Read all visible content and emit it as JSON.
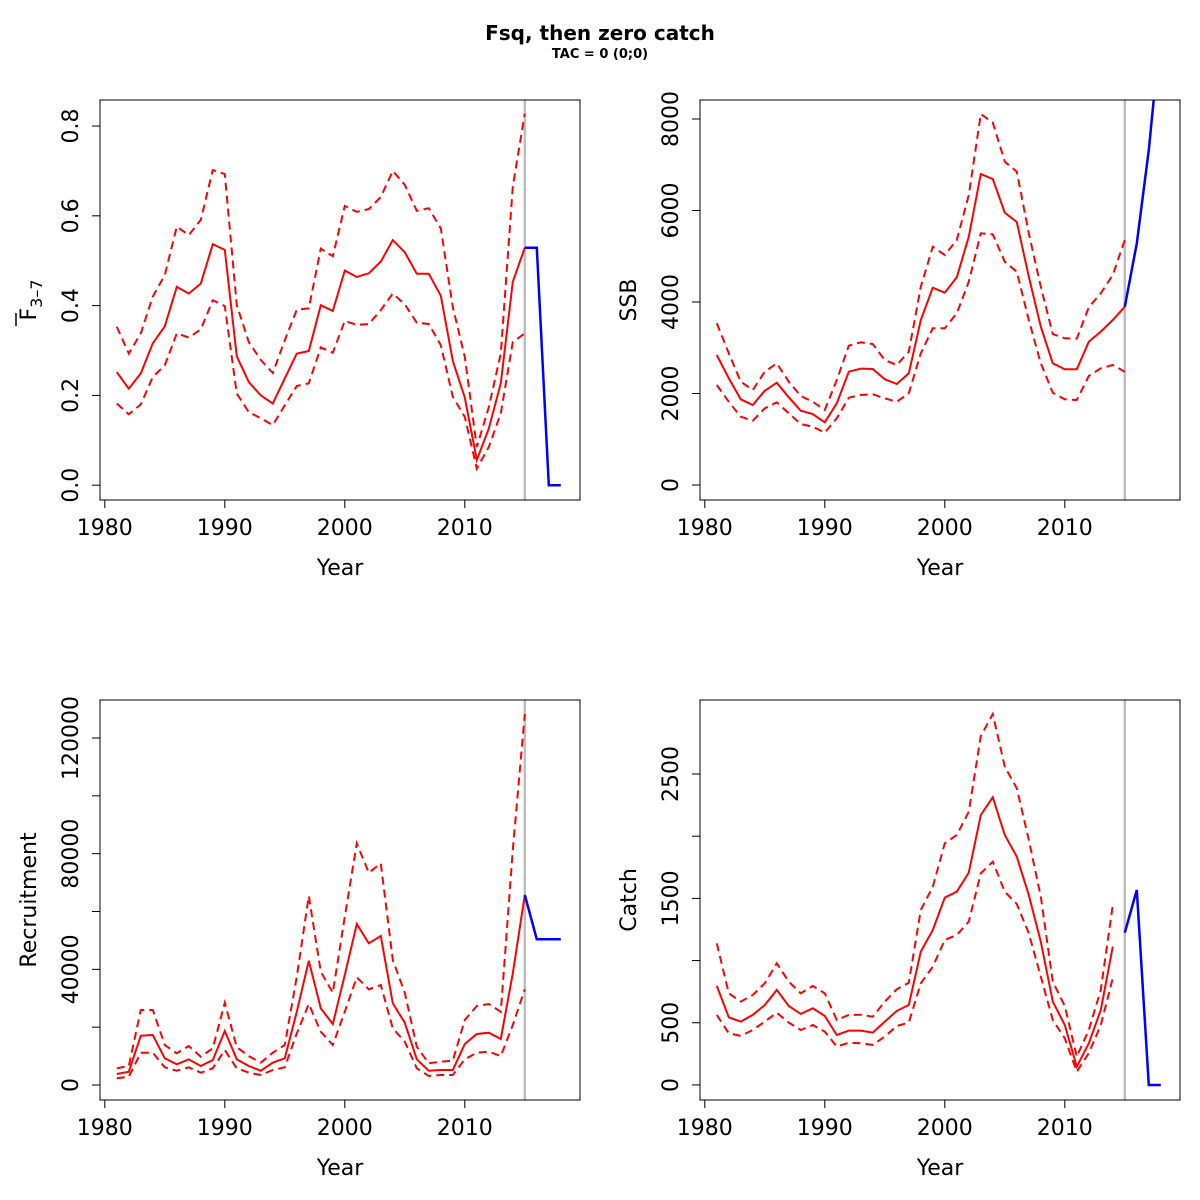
{
  "title": "Fsq, then zero catch",
  "subtitle": "TAC = 0 (0;0)",
  "colors": {
    "estimate": "#ff0000",
    "projection": "#0000ff",
    "divider": "#bebebe"
  },
  "chart_data": [
    {
      "type": "line",
      "id": "f",
      "xlabel": "Year",
      "ylabel": "F",
      "ylabel_sub": "3–7",
      "ylabel_overbar": true,
      "xlim": [
        1979.6,
        2019.6
      ],
      "ylim": [
        -0.033,
        0.858
      ],
      "xticks": [
        1980,
        1990,
        2000,
        2010
      ],
      "yticks": [
        0.0,
        0.2,
        0.4,
        0.6,
        0.8
      ],
      "ytick_labels": [
        "0.0",
        "0.2",
        "0.4",
        "0.6",
        "0.8"
      ],
      "divider_year": 2015,
      "years": [
        1981,
        1982,
        1983,
        1984,
        1985,
        1986,
        1987,
        1988,
        1989,
        1990,
        1991,
        1992,
        1993,
        1994,
        1995,
        1996,
        1997,
        1998,
        1999,
        2000,
        2001,
        2002,
        2003,
        2004,
        2005,
        2006,
        2007,
        2008,
        2009,
        2010,
        2011,
        2012,
        2013,
        2014,
        2015
      ],
      "estimate": [
        0.252,
        0.215,
        0.249,
        0.316,
        0.354,
        0.442,
        0.427,
        0.449,
        0.537,
        0.524,
        0.287,
        0.23,
        0.2,
        0.182,
        0.238,
        0.293,
        0.299,
        0.401,
        0.388,
        0.478,
        0.464,
        0.472,
        0.498,
        0.546,
        0.519,
        0.471,
        0.471,
        0.422,
        0.277,
        0.195,
        0.056,
        0.126,
        0.227,
        0.453,
        0.529
      ],
      "upper": [
        0.353,
        0.293,
        0.338,
        0.42,
        0.468,
        0.576,
        0.557,
        0.591,
        0.702,
        0.693,
        0.401,
        0.319,
        0.279,
        0.25,
        0.323,
        0.391,
        0.394,
        0.527,
        0.51,
        0.622,
        0.609,
        0.615,
        0.642,
        0.7,
        0.669,
        0.611,
        0.617,
        0.572,
        0.397,
        0.286,
        0.085,
        0.174,
        0.293,
        0.665,
        0.828
      ],
      "lower": [
        0.182,
        0.158,
        0.18,
        0.241,
        0.267,
        0.338,
        0.329,
        0.347,
        0.412,
        0.399,
        0.204,
        0.163,
        0.149,
        0.134,
        0.178,
        0.221,
        0.227,
        0.307,
        0.295,
        0.366,
        0.357,
        0.359,
        0.39,
        0.427,
        0.403,
        0.362,
        0.359,
        0.312,
        0.197,
        0.152,
        0.037,
        0.085,
        0.16,
        0.319,
        0.338
      ],
      "projection_years": [
        2015,
        2016,
        2017,
        2018
      ],
      "projection": [
        0.529,
        0.529,
        0.0,
        0.0
      ]
    },
    {
      "type": "line",
      "id": "ssb",
      "xlabel": "Year",
      "ylabel": "SSB",
      "xlim": [
        1979.6,
        2019.6
      ],
      "ylim": [
        -328,
        8415
      ],
      "xticks": [
        1980,
        1990,
        2000,
        2010
      ],
      "yticks": [
        0,
        2000,
        4000,
        6000,
        8000
      ],
      "ytick_labels": [
        "0",
        "2000",
        "4000",
        "6000",
        "8000"
      ],
      "divider_year": 2015,
      "years": [
        1981,
        1982,
        1983,
        1984,
        1985,
        1986,
        1987,
        1988,
        1989,
        1990,
        1991,
        1992,
        1993,
        1994,
        1995,
        1996,
        1997,
        1998,
        1999,
        2000,
        2001,
        2002,
        2003,
        2004,
        2005,
        2006,
        2007,
        2008,
        2009,
        2010,
        2011,
        2012,
        2013,
        2014,
        2015
      ],
      "estimate": [
        2841,
        2332,
        1873,
        1749,
        2062,
        2236,
        1916,
        1624,
        1552,
        1370,
        1785,
        2477,
        2543,
        2536,
        2310,
        2208,
        2441,
        3607,
        4313,
        4204,
        4539,
        5428,
        6798,
        6689,
        5953,
        5749,
        4554,
        3461,
        2659,
        2528,
        2528,
        3133,
        3352,
        3607,
        3898
      ],
      "upper": [
        3534,
        2879,
        2258,
        2077,
        2477,
        2659,
        2258,
        1945,
        1821,
        1639,
        2295,
        3045,
        3119,
        3082,
        2732,
        2623,
        2914,
        4335,
        5209,
        5027,
        5355,
        6339,
        8109,
        7920,
        7067,
        6849,
        5501,
        4335,
        3301,
        3206,
        3200,
        3884,
        4190,
        4590,
        5355
      ],
      "lower": [
        2186,
        1821,
        1493,
        1406,
        1676,
        1807,
        1567,
        1333,
        1275,
        1144,
        1457,
        1909,
        1967,
        1982,
        1895,
        1821,
        2004,
        2879,
        3424,
        3424,
        3752,
        4444,
        5501,
        5479,
        4881,
        4663,
        3607,
        2659,
        2018,
        1873,
        1858,
        2382,
        2550,
        2623,
        2477
      ],
      "projection_years": [
        2015,
        2016,
        2017,
        2018
      ],
      "projection": [
        3898,
        5282,
        7322,
        10000
      ]
    },
    {
      "type": "line",
      "id": "recruitment",
      "xlabel": "Year",
      "ylabel": "Recruitment",
      "xlim": [
        1979.6,
        2019.6
      ],
      "ylim": [
        -5187,
        133140
      ],
      "xticks": [
        1980,
        1990,
        2000,
        2010
      ],
      "yticks": [
        0,
        20000,
        40000,
        60000,
        80000,
        100000,
        120000
      ],
      "ytick_labels": [
        "0",
        "",
        "40000",
        "",
        "80000",
        "",
        "120000"
      ],
      "divider_year": 2015,
      "years": [
        1981,
        1982,
        1983,
        1984,
        1985,
        1986,
        1987,
        1988,
        1989,
        1990,
        1991,
        1992,
        1993,
        1994,
        1995,
        1996,
        1997,
        1998,
        1999,
        2000,
        2001,
        2002,
        2003,
        2004,
        2005,
        2006,
        2007,
        2008,
        2009,
        2010,
        2011,
        2012,
        2013,
        2014,
        2015
      ],
      "estimate": [
        3800,
        4600,
        17050,
        17300,
        9220,
        7150,
        8880,
        6570,
        8650,
        18670,
        8880,
        6570,
        4960,
        7720,
        9220,
        25350,
        43000,
        26520,
        21100,
        38040,
        55680,
        49000,
        51530,
        28250,
        21550,
        8880,
        4960,
        5190,
        5190,
        14180,
        17640,
        18090,
        15910,
        38620,
        65710
      ],
      "upper": [
        5760,
        6570,
        25940,
        25940,
        13830,
        10950,
        13490,
        9800,
        12680,
        28470,
        13030,
        10030,
        7720,
        11180,
        13830,
        37460,
        65360,
        39190,
        31920,
        58210,
        83590,
        73420,
        76650,
        43230,
        31920,
        13260,
        7500,
        8070,
        8400,
        22480,
        27320,
        28010,
        25350,
        81270,
        128300
      ],
      "lower": [
        2300,
        2880,
        11180,
        11180,
        6110,
        4960,
        6110,
        4270,
        5760,
        12100,
        5760,
        4270,
        3460,
        5190,
        6110,
        17870,
        28010,
        18440,
        13830,
        25350,
        37240,
        33090,
        34580,
        19600,
        14980,
        5760,
        3110,
        3460,
        3460,
        8880,
        11180,
        11530,
        10030,
        20750,
        33090
      ],
      "projection_years": [
        2015,
        2016,
        2017,
        2018
      ],
      "projection": [
        65710,
        50380,
        50380,
        50380
      ]
    },
    {
      "type": "line",
      "id": "catch",
      "xlabel": "Year",
      "ylabel": "Catch",
      "xlim": [
        1979.6,
        2019.6
      ],
      "ylim": [
        -121,
        3095
      ],
      "xticks": [
        1980,
        1990,
        2000,
        2010
      ],
      "yticks": [
        0,
        500,
        1000,
        1500,
        2000,
        2500
      ],
      "ytick_labels": [
        "0",
        "500",
        "",
        "1500",
        "",
        "2500"
      ],
      "divider_year": 2015,
      "years": [
        1981,
        1982,
        1983,
        1984,
        1985,
        1986,
        1987,
        1988,
        1989,
        1990,
        1991,
        1992,
        1993,
        1994,
        1995,
        1996,
        1997,
        1998,
        1999,
        2000,
        2001,
        2002,
        2003,
        2004,
        2005,
        2006,
        2007,
        2008,
        2009,
        2010,
        2011,
        2012,
        2013,
        2014
      ],
      "estimate": [
        796,
        544,
        509,
        563,
        643,
        764,
        635,
        571,
        616,
        555,
        402,
        437,
        437,
        421,
        509,
        595,
        643,
        1072,
        1246,
        1506,
        1554,
        1707,
        2170,
        2313,
        2010,
        1835,
        1527,
        1152,
        670,
        482,
        147,
        335,
        603,
        1112
      ],
      "upper": [
        1139,
        737,
        670,
        723,
        817,
        978,
        830,
        737,
        796,
        737,
        522,
        563,
        565,
        549,
        670,
        769,
        822,
        1407,
        1594,
        1943,
        2010,
        2197,
        2805,
        2982,
        2559,
        2385,
        1970,
        1514,
        830,
        635,
        228,
        442,
        764,
        1447
      ],
      "lower": [
        563,
        416,
        394,
        442,
        509,
        581,
        501,
        442,
        482,
        429,
        308,
        340,
        335,
        322,
        389,
        474,
        501,
        817,
        951,
        1166,
        1206,
        1313,
        1702,
        1795,
        1554,
        1455,
        1219,
        871,
        522,
        375,
        107,
        255,
        482,
        858
      ],
      "projection_years": [
        2015,
        2016,
        2017,
        2018
      ],
      "projection": [
        1224,
        1568,
        0,
        0
      ]
    }
  ]
}
